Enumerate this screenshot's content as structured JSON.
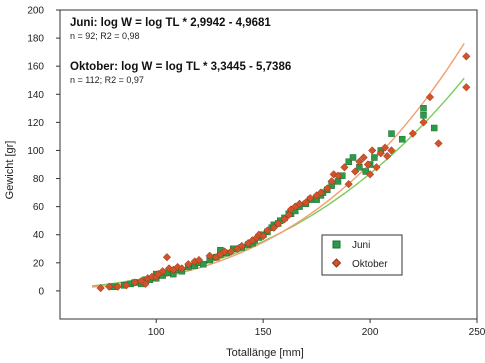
{
  "chart_data": {
    "type": "scatter",
    "xlabel": "Totallänge [mm]",
    "ylabel": "Gewicht [gr]",
    "xlim": [
      55,
      250
    ],
    "ylim": [
      -20,
      200
    ],
    "xticks": [
      100,
      150,
      200,
      250
    ],
    "yticks": [
      0,
      20,
      40,
      60,
      80,
      100,
      120,
      140,
      160,
      180,
      200
    ],
    "grid": false,
    "legend_position": "lower-right",
    "annotations": [
      {
        "title": "Juni: log W = log TL * 2,9942 - 4,9681",
        "stats": "n = 92; R2 = 0,98"
      },
      {
        "title": "Oktober: log W = log TL * 3,3445 - 5,7386",
        "stats": "n = 112; R2 = 0,97"
      }
    ],
    "series": [
      {
        "name": "Juni",
        "marker": "square",
        "color": "#2e9a48",
        "fit_color": "#7ccb5a",
        "fit": {
          "log_a": -4.9681,
          "b": 2.9942,
          "x_range": [
            70,
            245
          ]
        },
        "points": [
          [
            80,
            3
          ],
          [
            85,
            4
          ],
          [
            88,
            5
          ],
          [
            90,
            6
          ],
          [
            93,
            5
          ],
          [
            95,
            8
          ],
          [
            97,
            8
          ],
          [
            100,
            9
          ],
          [
            100,
            12
          ],
          [
            103,
            11
          ],
          [
            105,
            13
          ],
          [
            108,
            12
          ],
          [
            110,
            15
          ],
          [
            112,
            14
          ],
          [
            115,
            17
          ],
          [
            118,
            18
          ],
          [
            120,
            20
          ],
          [
            122,
            19
          ],
          [
            125,
            22
          ],
          [
            128,
            24
          ],
          [
            130,
            26
          ],
          [
            130,
            29
          ],
          [
            133,
            27
          ],
          [
            136,
            30
          ],
          [
            140,
            31
          ],
          [
            143,
            33
          ],
          [
            145,
            34
          ],
          [
            146,
            36
          ],
          [
            148,
            38
          ],
          [
            150,
            40
          ],
          [
            152,
            42
          ],
          [
            154,
            45
          ],
          [
            155,
            47
          ],
          [
            157,
            48
          ],
          [
            158,
            50
          ],
          [
            160,
            52
          ],
          [
            162,
            55
          ],
          [
            163,
            55
          ],
          [
            165,
            57
          ],
          [
            167,
            60
          ],
          [
            170,
            62
          ],
          [
            172,
            65
          ],
          [
            175,
            65
          ],
          [
            177,
            68
          ],
          [
            178,
            70
          ],
          [
            180,
            72
          ],
          [
            182,
            75
          ],
          [
            185,
            78
          ],
          [
            187,
            82
          ],
          [
            190,
            92
          ],
          [
            192,
            95
          ],
          [
            195,
            88
          ],
          [
            198,
            85
          ],
          [
            200,
            90
          ],
          [
            202,
            95
          ],
          [
            205,
            100
          ],
          [
            210,
            112
          ],
          [
            215,
            108
          ],
          [
            225,
            125
          ],
          [
            225,
            130
          ],
          [
            230,
            116
          ]
        ]
      },
      {
        "name": "Oktober",
        "marker": "diamond",
        "color": "#d2532a",
        "fit_color": "#f0a070",
        "fit": {
          "log_a": -5.7386,
          "b": 3.3445,
          "x_range": [
            70,
            245
          ]
        },
        "points": [
          [
            74,
            2
          ],
          [
            78,
            3
          ],
          [
            82,
            3
          ],
          [
            86,
            4
          ],
          [
            90,
            6
          ],
          [
            93,
            7
          ],
          [
            95,
            5
          ],
          [
            96,
            9
          ],
          [
            98,
            10
          ],
          [
            100,
            10
          ],
          [
            101,
            12
          ],
          [
            103,
            14
          ],
          [
            105,
            24
          ],
          [
            106,
            16
          ],
          [
            108,
            15
          ],
          [
            110,
            17
          ],
          [
            112,
            16
          ],
          [
            115,
            19
          ],
          [
            118,
            21
          ],
          [
            120,
            22
          ],
          [
            125,
            25
          ],
          [
            128,
            24
          ],
          [
            130,
            26
          ],
          [
            132,
            28
          ],
          [
            135,
            28
          ],
          [
            138,
            30
          ],
          [
            140,
            32
          ],
          [
            143,
            34
          ],
          [
            145,
            36
          ],
          [
            147,
            38
          ],
          [
            148,
            40
          ],
          [
            150,
            39
          ],
          [
            152,
            43
          ],
          [
            155,
            45
          ],
          [
            157,
            48
          ],
          [
            160,
            51
          ],
          [
            162,
            54
          ],
          [
            163,
            58
          ],
          [
            165,
            60
          ],
          [
            167,
            62
          ],
          [
            170,
            63
          ],
          [
            172,
            66
          ],
          [
            175,
            68
          ],
          [
            177,
            70
          ],
          [
            180,
            73
          ],
          [
            182,
            78
          ],
          [
            183,
            83
          ],
          [
            185,
            82
          ],
          [
            188,
            88
          ],
          [
            190,
            76
          ],
          [
            193,
            85
          ],
          [
            195,
            92
          ],
          [
            197,
            95
          ],
          [
            199,
            90
          ],
          [
            200,
            83
          ],
          [
            201,
            100
          ],
          [
            203,
            88
          ],
          [
            205,
            98
          ],
          [
            207,
            102
          ],
          [
            208,
            96
          ],
          [
            210,
            100
          ],
          [
            220,
            112
          ],
          [
            225,
            120
          ],
          [
            228,
            138
          ],
          [
            232,
            105
          ],
          [
            245,
            167
          ],
          [
            245,
            145
          ]
        ]
      }
    ]
  }
}
